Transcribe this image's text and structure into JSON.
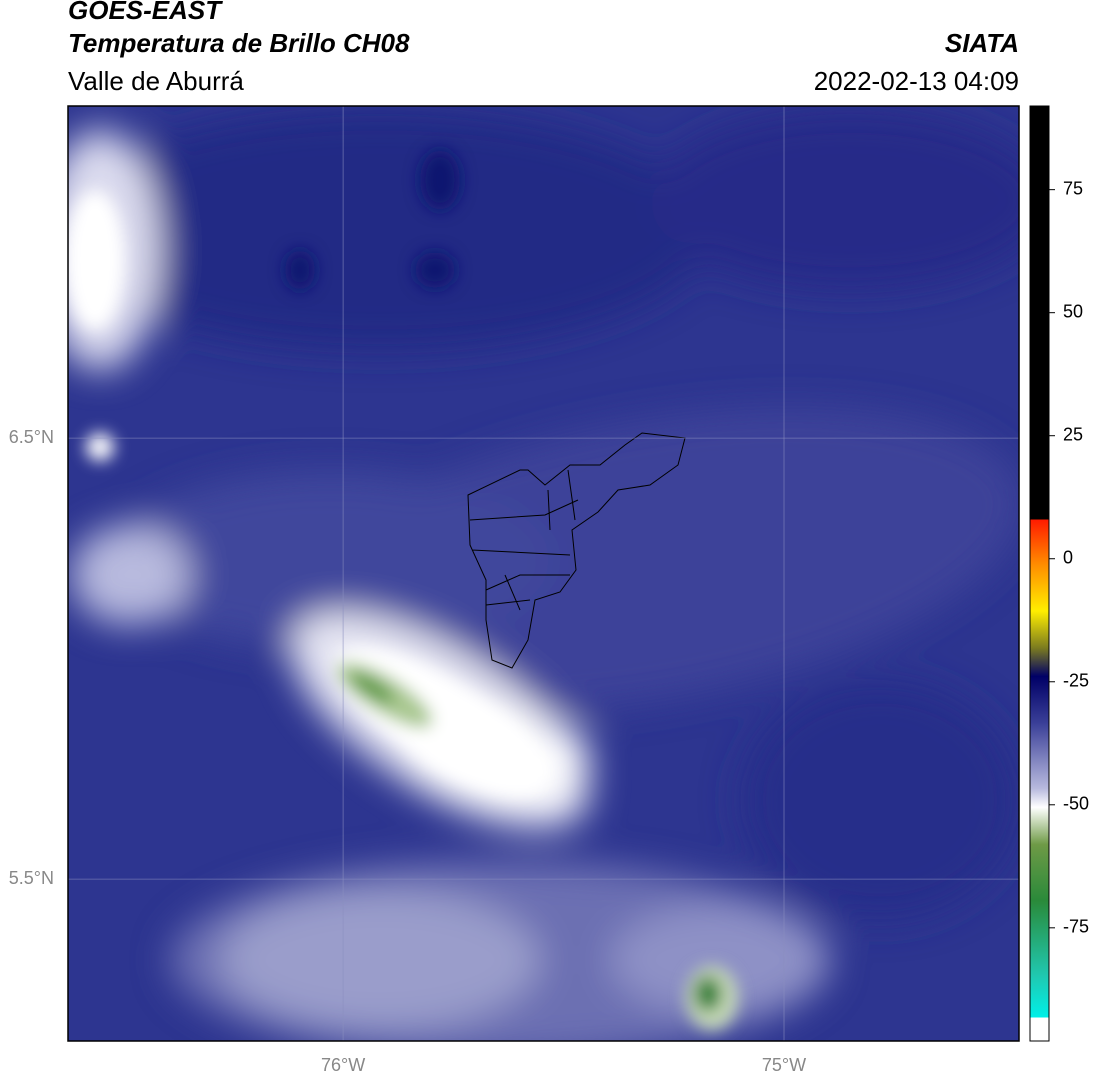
{
  "header": {
    "title": "GOES-EAST",
    "subtitle": "Temperatura de Brillo CH08",
    "region": "Valle de Aburrá",
    "source": "SIATA",
    "datetime": "2022-02-13 04:09"
  },
  "map": {
    "lonlim": [
      -76.624,
      -74.467
    ],
    "latlim": [
      5.133,
      7.253
    ],
    "lat_ticks": [
      {
        "value": 6.5,
        "label": "6.5°N"
      },
      {
        "value": 5.5,
        "label": "5.5°N"
      }
    ],
    "lon_ticks": [
      {
        "value": -76,
        "label": "76°W"
      },
      {
        "value": -75,
        "label": "75°W"
      }
    ]
  },
  "colorbar": {
    "lim": [
      -98,
      92
    ],
    "ticks": [
      75,
      50,
      25,
      0,
      -25,
      -50,
      -75
    ]
  }
}
